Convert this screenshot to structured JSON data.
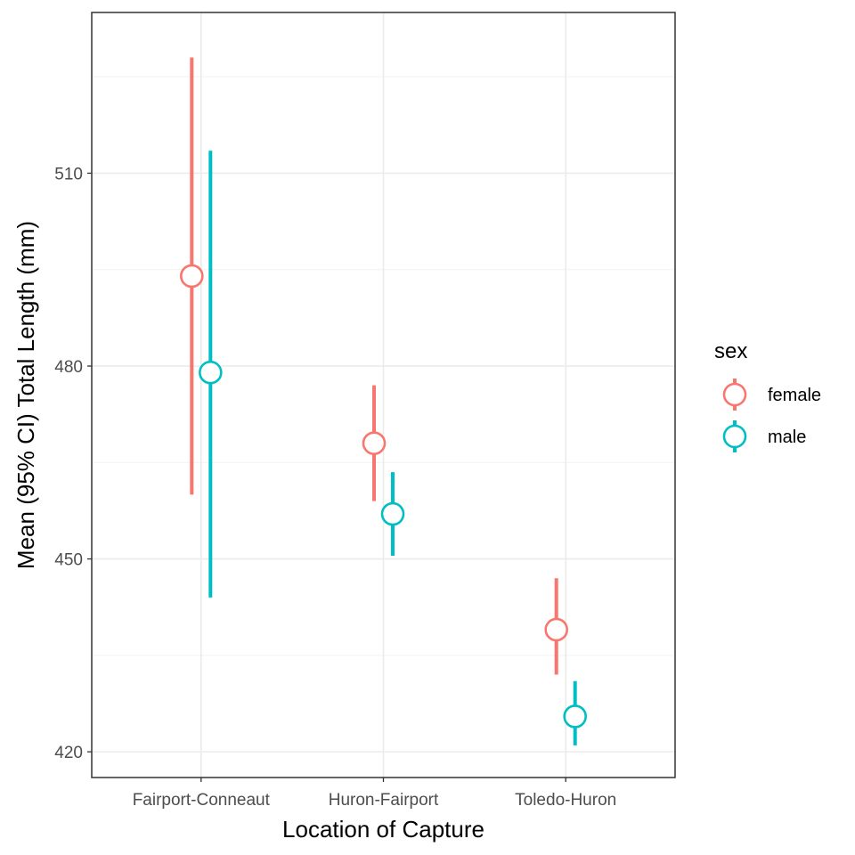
{
  "chart_data": {
    "type": "pointrange",
    "xlabel": "Location of Capture",
    "ylabel": "Mean (95% CI) Total Length (mm)",
    "categories": [
      "Fairport-Conneaut",
      "Huron-Fairport",
      "Toledo-Huron"
    ],
    "ylim": [
      416,
      535
    ],
    "yticks": [
      420,
      450,
      480,
      510
    ],
    "grid": true,
    "legend": {
      "title": "sex",
      "placement": "right",
      "entries": [
        "female",
        "male"
      ]
    },
    "series": [
      {
        "name": "female",
        "color": "#F8766D",
        "mean": [
          494,
          468,
          439
        ],
        "lower": [
          460,
          459,
          432
        ],
        "upper": [
          528,
          477,
          447
        ]
      },
      {
        "name": "male",
        "color": "#00BFC4",
        "mean": [
          479,
          457,
          425.5
        ],
        "lower": [
          444,
          450.5,
          421
        ],
        "upper": [
          513.5,
          463.5,
          431
        ]
      }
    ]
  }
}
